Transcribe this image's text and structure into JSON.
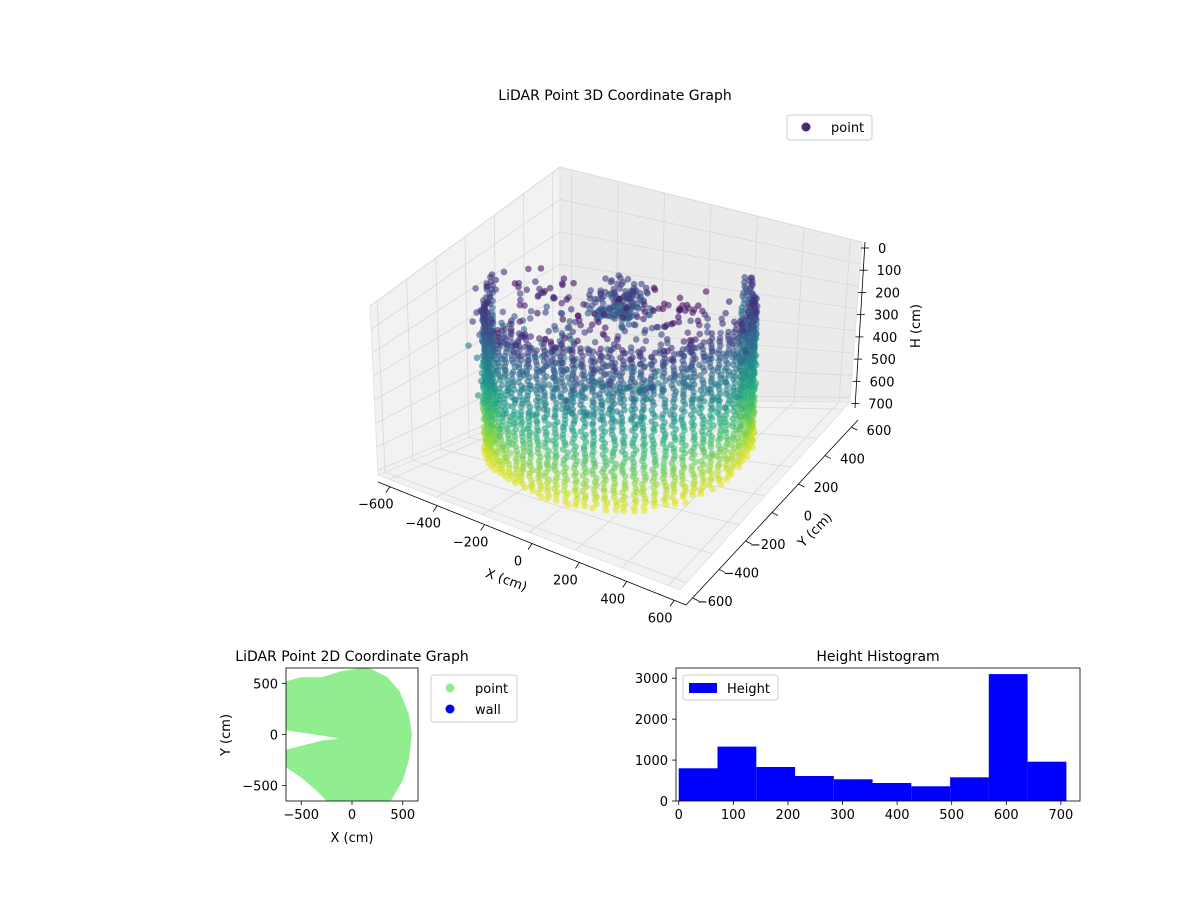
{
  "chart_data": [
    {
      "type": "scatter",
      "title": "LiDAR Point 3D Coordinate Graph",
      "xlabel": "X (cm)",
      "ylabel": "Y (cm)",
      "zlabel": "H (cm)",
      "xticks": [
        "−600",
        "−400",
        "−200",
        "0",
        "200",
        "400",
        "600"
      ],
      "yticks": [
        "−600",
        "−400",
        "−200",
        "0",
        "200",
        "400",
        "600"
      ],
      "zticks": [
        "0",
        "100",
        "200",
        "300",
        "400",
        "500",
        "600",
        "700"
      ],
      "xlim": [
        -650,
        650
      ],
      "ylim": [
        -650,
        650
      ],
      "zlim": [
        0,
        720
      ],
      "z_inverted": true,
      "colormap": "viridis",
      "legend": {
        "position": "top-right",
        "entries": [
          {
            "label": "point",
            "color": "#482878"
          }
        ]
      }
    },
    {
      "type": "scatter",
      "title": "LiDAR Point 2D Coordinate Graph",
      "xlabel": "X (cm)",
      "ylabel": "Y (cm)",
      "xticks": [
        "−500",
        "0",
        "500"
      ],
      "yticks": [
        "500",
        "0",
        "−500"
      ],
      "xlim": [
        -650,
        650
      ],
      "ylim": [
        -650,
        650
      ],
      "legend": {
        "position": "outside-right",
        "entries": [
          {
            "label": "point",
            "color": "#90ee90"
          },
          {
            "label": "wall",
            "color": "#0000ff"
          }
        ]
      }
    },
    {
      "type": "bar",
      "title": "Height Histogram",
      "series": [
        {
          "name": "Height",
          "color": "#0000ff",
          "bin_edges": [
            0,
            71,
            142,
            213,
            284,
            355,
            426,
            497,
            568,
            639,
            710
          ],
          "values": [
            800,
            1330,
            830,
            610,
            530,
            440,
            360,
            580,
            3100,
            960
          ]
        }
      ],
      "xticks": [
        "0",
        "100",
        "200",
        "300",
        "400",
        "500",
        "600",
        "700"
      ],
      "yticks": [
        "0",
        "1000",
        "2000",
        "3000"
      ],
      "xlim": [
        -5,
        735
      ],
      "ylim": [
        0,
        3250
      ],
      "legend": {
        "position": "top-left",
        "entries": [
          {
            "label": "Height",
            "color": "#0000ff"
          }
        ]
      }
    }
  ]
}
